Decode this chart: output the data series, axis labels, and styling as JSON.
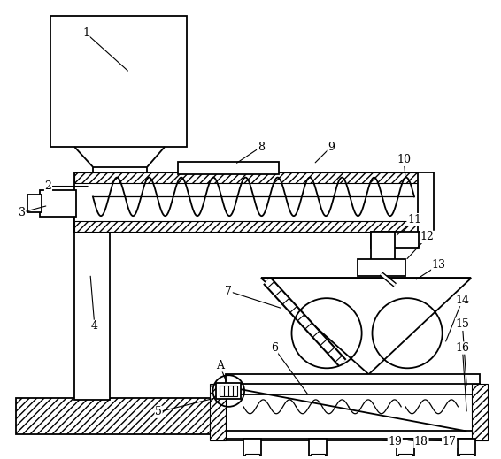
{
  "background_color": "#ffffff",
  "line_color": "#000000",
  "fig_width": 5.66,
  "fig_height": 5.19,
  "dpi": 100
}
